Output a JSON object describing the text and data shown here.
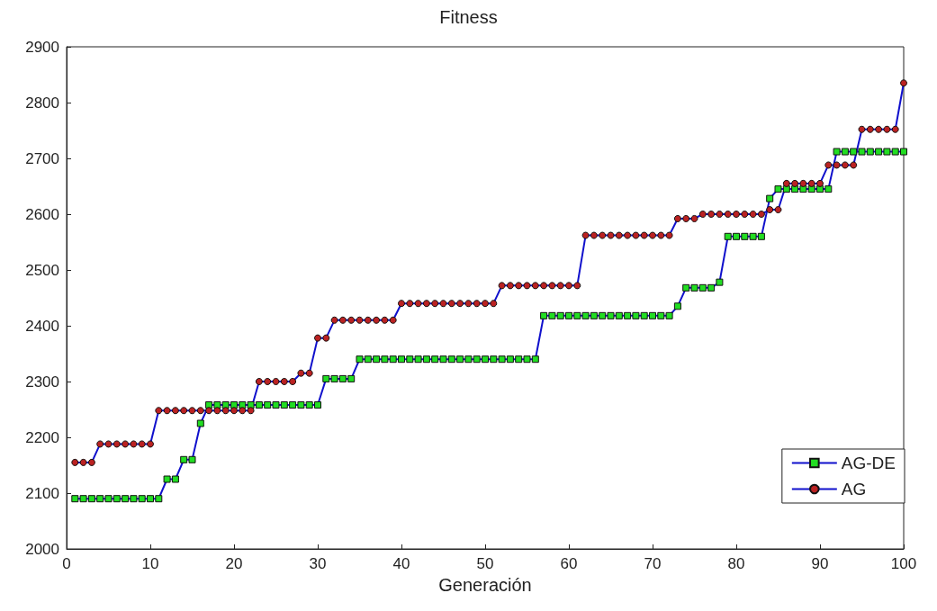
{
  "chart_data": {
    "type": "line",
    "title": "Fitness",
    "xlabel": "Generación",
    "x": [
      1,
      2,
      3,
      4,
      5,
      6,
      7,
      8,
      9,
      10,
      11,
      12,
      13,
      14,
      15,
      16,
      17,
      18,
      19,
      20,
      21,
      22,
      23,
      24,
      25,
      26,
      27,
      28,
      29,
      30,
      31,
      32,
      33,
      34,
      35,
      36,
      37,
      38,
      39,
      40,
      41,
      42,
      43,
      44,
      45,
      46,
      47,
      48,
      49,
      50,
      51,
      52,
      53,
      54,
      55,
      56,
      57,
      58,
      59,
      60,
      61,
      62,
      63,
      64,
      65,
      66,
      67,
      68,
      69,
      70,
      71,
      72,
      73,
      74,
      75,
      76,
      77,
      78,
      79,
      80,
      81,
      82,
      83,
      84,
      85,
      86,
      87,
      88,
      89,
      90,
      91,
      92,
      93,
      94,
      95,
      96,
      97,
      98,
      99,
      100
    ],
    "series": [
      {
        "name": "AG-DE",
        "color": "#22dd22",
        "marker": "square",
        "values": [
          2090,
          2090,
          2090,
          2090,
          2090,
          2090,
          2090,
          2090,
          2090,
          2090,
          2090,
          2125,
          2125,
          2160,
          2160,
          2225,
          2258,
          2258,
          2258,
          2258,
          2258,
          2258,
          2258,
          2258,
          2258,
          2258,
          2258,
          2258,
          2258,
          2258,
          2305,
          2305,
          2305,
          2305,
          2340,
          2340,
          2340,
          2340,
          2340,
          2340,
          2340,
          2340,
          2340,
          2340,
          2340,
          2340,
          2340,
          2340,
          2340,
          2340,
          2340,
          2340,
          2340,
          2340,
          2340,
          2340,
          2418,
          2418,
          2418,
          2418,
          2418,
          2418,
          2418,
          2418,
          2418,
          2418,
          2418,
          2418,
          2418,
          2418,
          2418,
          2418,
          2435,
          2468,
          2468,
          2468,
          2468,
          2478,
          2560,
          2560,
          2560,
          2560,
          2560,
          2628,
          2645,
          2645,
          2645,
          2645,
          2645,
          2645,
          2645,
          2712,
          2712,
          2712,
          2712,
          2712,
          2712,
          2712,
          2712,
          2712
        ]
      },
      {
        "name": "AG",
        "color": "#bb2222",
        "marker": "circle",
        "values": [
          2155,
          2155,
          2155,
          2188,
          2188,
          2188,
          2188,
          2188,
          2188,
          2188,
          2248,
          2248,
          2248,
          2248,
          2248,
          2248,
          2248,
          2248,
          2248,
          2248,
          2248,
          2248,
          2300,
          2300,
          2300,
          2300,
          2300,
          2315,
          2315,
          2378,
          2378,
          2410,
          2410,
          2410,
          2410,
          2410,
          2410,
          2410,
          2410,
          2440,
          2440,
          2440,
          2440,
          2440,
          2440,
          2440,
          2440,
          2440,
          2440,
          2440,
          2440,
          2472,
          2472,
          2472,
          2472,
          2472,
          2472,
          2472,
          2472,
          2472,
          2472,
          2562,
          2562,
          2562,
          2562,
          2562,
          2562,
          2562,
          2562,
          2562,
          2562,
          2562,
          2592,
          2592,
          2592,
          2600,
          2600,
          2600,
          2600,
          2600,
          2600,
          2600,
          2600,
          2608,
          2608,
          2655,
          2655,
          2655,
          2655,
          2655,
          2688,
          2688,
          2688,
          2688,
          2752,
          2752,
          2752,
          2752,
          2752,
          2835
        ]
      }
    ],
    "xlim": [
      0,
      100
    ],
    "xticks": [
      0,
      10,
      20,
      30,
      40,
      50,
      60,
      70,
      80,
      90,
      100
    ],
    "ylim": [
      2000,
      2900
    ],
    "yticks": [
      2000,
      2100,
      2200,
      2300,
      2400,
      2500,
      2600,
      2700,
      2800,
      2900
    ],
    "grid": false,
    "legend": "bottom right",
    "line_style": "solid"
  }
}
